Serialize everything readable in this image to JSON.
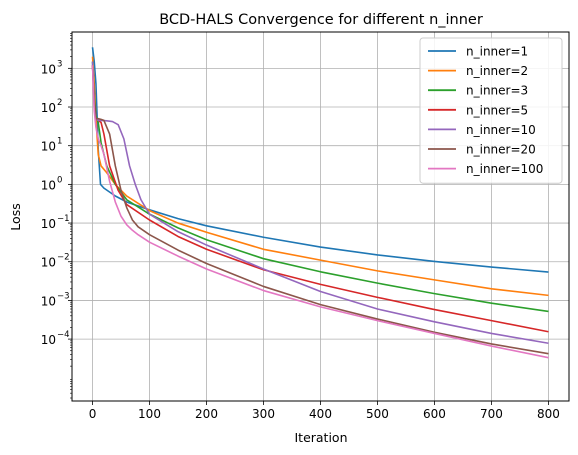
{
  "chart_data": {
    "type": "line",
    "title": "BCD-HALS Convergence for different n_inner",
    "xlabel": "Iteration",
    "ylabel": "Loss",
    "xlim": [
      -36,
      836
    ],
    "ylim": [
      2.51e-06,
      8700
    ],
    "yscale": "log",
    "xticks": [
      0,
      100,
      200,
      300,
      400,
      500,
      600,
      700,
      800
    ],
    "xtick_labels": [
      "0",
      "100",
      "200",
      "300",
      "400",
      "500",
      "600",
      "700",
      "800"
    ],
    "yticks": [
      0.0001,
      0.001,
      0.01,
      0.1,
      1,
      10,
      100,
      1000
    ],
    "ytick_labels": [
      {
        "base": "10",
        "exp": "−4"
      },
      {
        "base": "10",
        "exp": "−3"
      },
      {
        "base": "10",
        "exp": "−2"
      },
      {
        "base": "10",
        "exp": "−1"
      },
      {
        "base": "10",
        "exp": "0"
      },
      {
        "base": "10",
        "exp": "1"
      },
      {
        "base": "10",
        "exp": "2"
      },
      {
        "base": "10",
        "exp": "3"
      }
    ],
    "grid": true,
    "legend_position": "top-right",
    "series": [
      {
        "name": "n_inner=1",
        "color": "#1f77b4",
        "x": [
          0,
          3,
          6,
          8,
          10,
          14,
          20,
          40,
          60,
          100,
          150,
          200,
          300,
          400,
          500,
          600,
          700,
          800
        ],
        "y": [
          3500,
          1500,
          400,
          60,
          8,
          1.0,
          0.8,
          0.5,
          0.35,
          0.22,
          0.13,
          0.085,
          0.043,
          0.024,
          0.015,
          0.0102,
          0.0073,
          0.0054
        ]
      },
      {
        "name": "n_inner=2",
        "color": "#ff7f0e",
        "x": [
          0,
          3,
          6,
          10,
          15,
          25,
          40,
          60,
          100,
          150,
          200,
          300,
          400,
          500,
          600,
          700,
          800
        ],
        "y": [
          2000,
          400,
          50,
          6,
          3,
          2,
          1.0,
          0.5,
          0.21,
          0.1,
          0.058,
          0.021,
          0.011,
          0.0058,
          0.0034,
          0.002,
          0.00135
        ]
      },
      {
        "name": "n_inner=3",
        "color": "#2ca02c",
        "x": [
          0,
          3,
          6,
          10,
          15,
          25,
          40,
          60,
          100,
          150,
          200,
          300,
          400,
          500,
          600,
          700,
          800
        ],
        "y": [
          1500,
          200,
          60,
          40,
          12,
          3,
          1.0,
          0.4,
          0.17,
          0.075,
          0.037,
          0.012,
          0.0055,
          0.0028,
          0.0015,
          0.00085,
          0.00052
        ]
      },
      {
        "name": "n_inner=5",
        "color": "#d62728",
        "x": [
          0,
          3,
          6,
          10,
          15,
          20,
          30,
          45,
          60,
          100,
          150,
          200,
          300,
          400,
          500,
          600,
          700,
          800
        ],
        "y": [
          1200,
          150,
          50,
          45,
          40,
          20,
          3,
          0.7,
          0.3,
          0.12,
          0.045,
          0.021,
          0.0062,
          0.0026,
          0.0012,
          0.00058,
          0.0003,
          0.000155
        ]
      },
      {
        "name": "n_inner=10",
        "color": "#9467bd",
        "x": [
          0,
          3,
          6,
          10,
          15,
          25,
          35,
          45,
          55,
          65,
          75,
          85,
          100,
          150,
          200,
          300,
          400,
          500,
          600,
          700,
          800
        ],
        "y": [
          1500,
          100,
          50,
          45,
          45,
          44,
          42,
          35,
          15,
          3,
          1.0,
          0.4,
          0.17,
          0.06,
          0.027,
          0.0065,
          0.0017,
          0.0006,
          0.00028,
          0.00014,
          7.8e-05
        ]
      },
      {
        "name": "n_inner=20",
        "color": "#8c564b",
        "x": [
          0,
          3,
          6,
          10,
          15,
          20,
          30,
          40,
          50,
          60,
          70,
          80,
          100,
          150,
          200,
          300,
          400,
          500,
          600,
          700,
          800
        ],
        "y": [
          1200,
          150,
          50,
          50,
          48,
          45,
          20,
          3,
          0.7,
          0.25,
          0.12,
          0.08,
          0.05,
          0.02,
          0.009,
          0.0023,
          0.00078,
          0.00033,
          0.00015,
          7.5e-05,
          4.2e-05
        ]
      },
      {
        "name": "n_inner=100",
        "color": "#e377c2",
        "x": [
          0,
          3,
          6,
          10,
          15,
          20,
          30,
          40,
          50,
          60,
          70,
          80,
          100,
          150,
          200,
          300,
          400,
          500,
          600,
          700,
          800
        ],
        "y": [
          1200,
          80,
          30,
          15,
          10,
          6,
          1.2,
          0.35,
          0.15,
          0.09,
          0.065,
          0.05,
          0.032,
          0.014,
          0.0065,
          0.0018,
          0.00068,
          0.0003,
          0.00014,
          6.6e-05,
          3.3e-05
        ]
      }
    ]
  }
}
